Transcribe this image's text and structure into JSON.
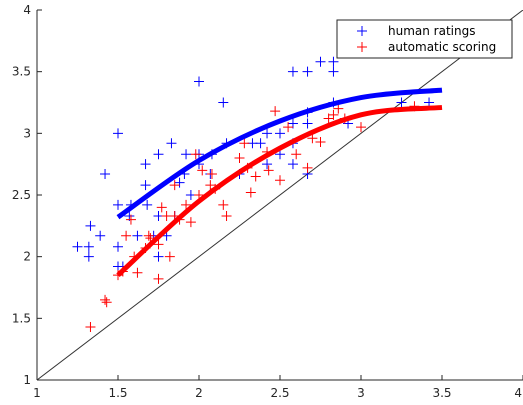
{
  "chart_data": {
    "type": "scatter",
    "xlim": [
      1,
      4
    ],
    "ylim": [
      1,
      4
    ],
    "xticks": [
      "1",
      "1.5",
      "2",
      "2.5",
      "3",
      "3.5",
      "4"
    ],
    "yticks": [
      "1",
      "1.5",
      "2",
      "2.5",
      "3",
      "3.5",
      "4"
    ],
    "grid": false,
    "legend_position": "top-right",
    "reference_line": {
      "from": [
        1,
        1
      ],
      "to": [
        4,
        4
      ],
      "color": "#333333"
    },
    "series": [
      {
        "name": "human ratings",
        "color": "#0000ff",
        "marker": "+",
        "points": [
          [
            1.25,
            2.08
          ],
          [
            1.32,
            2.08
          ],
          [
            1.32,
            2.0
          ],
          [
            1.33,
            2.25
          ],
          [
            1.39,
            2.17
          ],
          [
            1.42,
            2.67
          ],
          [
            1.5,
            3.0
          ],
          [
            1.5,
            2.42
          ],
          [
            1.5,
            2.08
          ],
          [
            1.5,
            1.92
          ],
          [
            1.53,
            1.92
          ],
          [
            1.57,
            2.33
          ],
          [
            1.58,
            2.42
          ],
          [
            1.62,
            2.17
          ],
          [
            1.67,
            2.58
          ],
          [
            1.67,
            2.75
          ],
          [
            1.68,
            2.42
          ],
          [
            1.72,
            2.17
          ],
          [
            1.75,
            2.83
          ],
          [
            1.75,
            2.33
          ],
          [
            1.75,
            2.0
          ],
          [
            1.8,
            2.17
          ],
          [
            1.83,
            2.92
          ],
          [
            1.85,
            2.33
          ],
          [
            1.88,
            2.6
          ],
          [
            1.91,
            2.67
          ],
          [
            1.92,
            2.83
          ],
          [
            1.95,
            2.5
          ],
          [
            2.0,
            3.42
          ],
          [
            2.0,
            2.83
          ],
          [
            2.0,
            2.75
          ],
          [
            2.07,
            2.67
          ],
          [
            2.08,
            2.83
          ],
          [
            2.15,
            3.25
          ],
          [
            2.17,
            2.92
          ],
          [
            2.25,
            2.67
          ],
          [
            2.33,
            2.92
          ],
          [
            2.38,
            2.92
          ],
          [
            2.42,
            3.0
          ],
          [
            2.42,
            2.75
          ],
          [
            2.5,
            2.83
          ],
          [
            2.5,
            3.0
          ],
          [
            2.58,
            3.08
          ],
          [
            2.58,
            2.92
          ],
          [
            2.58,
            2.75
          ],
          [
            2.58,
            3.5
          ],
          [
            2.67,
            3.5
          ],
          [
            2.67,
            3.17
          ],
          [
            2.67,
            3.08
          ],
          [
            2.67,
            2.67
          ],
          [
            2.75,
            3.58
          ],
          [
            2.83,
            3.58
          ],
          [
            2.83,
            3.5
          ],
          [
            2.83,
            3.25
          ],
          [
            2.92,
            3.08
          ],
          [
            3.25,
            3.25
          ],
          [
            3.42,
            3.25
          ]
        ],
        "fit_curve": [
          [
            1.5,
            2.32
          ],
          [
            2.0,
            2.78
          ],
          [
            2.5,
            3.1
          ],
          [
            3.0,
            3.29
          ],
          [
            3.5,
            3.35
          ]
        ]
      },
      {
        "name": "automatic scoring",
        "color": "#ff0000",
        "marker": "+",
        "points": [
          [
            1.33,
            1.43
          ],
          [
            1.42,
            1.65
          ],
          [
            1.43,
            1.63
          ],
          [
            1.5,
            1.85
          ],
          [
            1.53,
            1.88
          ],
          [
            1.55,
            2.17
          ],
          [
            1.58,
            2.3
          ],
          [
            1.6,
            2.0
          ],
          [
            1.62,
            1.87
          ],
          [
            1.67,
            2.07
          ],
          [
            1.69,
            2.17
          ],
          [
            1.7,
            2.15
          ],
          [
            1.75,
            2.1
          ],
          [
            1.75,
            1.82
          ],
          [
            1.77,
            2.4
          ],
          [
            1.8,
            2.33
          ],
          [
            1.82,
            2.0
          ],
          [
            1.85,
            2.58
          ],
          [
            1.85,
            2.33
          ],
          [
            1.88,
            2.3
          ],
          [
            1.92,
            2.42
          ],
          [
            1.95,
            2.28
          ],
          [
            1.98,
            2.83
          ],
          [
            2.0,
            2.5
          ],
          [
            2.02,
            2.7
          ],
          [
            2.07,
            2.58
          ],
          [
            2.08,
            2.67
          ],
          [
            2.1,
            2.55
          ],
          [
            2.15,
            2.42
          ],
          [
            2.17,
            2.33
          ],
          [
            2.25,
            2.8
          ],
          [
            2.28,
            2.92
          ],
          [
            2.3,
            2.72
          ],
          [
            2.32,
            2.52
          ],
          [
            2.35,
            2.65
          ],
          [
            2.42,
            2.85
          ],
          [
            2.43,
            2.7
          ],
          [
            2.47,
            3.18
          ],
          [
            2.5,
            2.62
          ],
          [
            2.55,
            3.05
          ],
          [
            2.6,
            2.83
          ],
          [
            2.67,
            2.72
          ],
          [
            2.7,
            2.96
          ],
          [
            2.75,
            2.93
          ],
          [
            2.8,
            3.12
          ],
          [
            2.83,
            3.15
          ],
          [
            2.86,
            3.2
          ],
          [
            2.9,
            3.12
          ],
          [
            3.0,
            3.05
          ],
          [
            3.33,
            3.22
          ]
        ],
        "fit_curve": [
          [
            1.5,
            1.85
          ],
          [
            2.0,
            2.45
          ],
          [
            2.5,
            2.88
          ],
          [
            3.0,
            3.15
          ],
          [
            3.5,
            3.21
          ]
        ]
      }
    ]
  }
}
